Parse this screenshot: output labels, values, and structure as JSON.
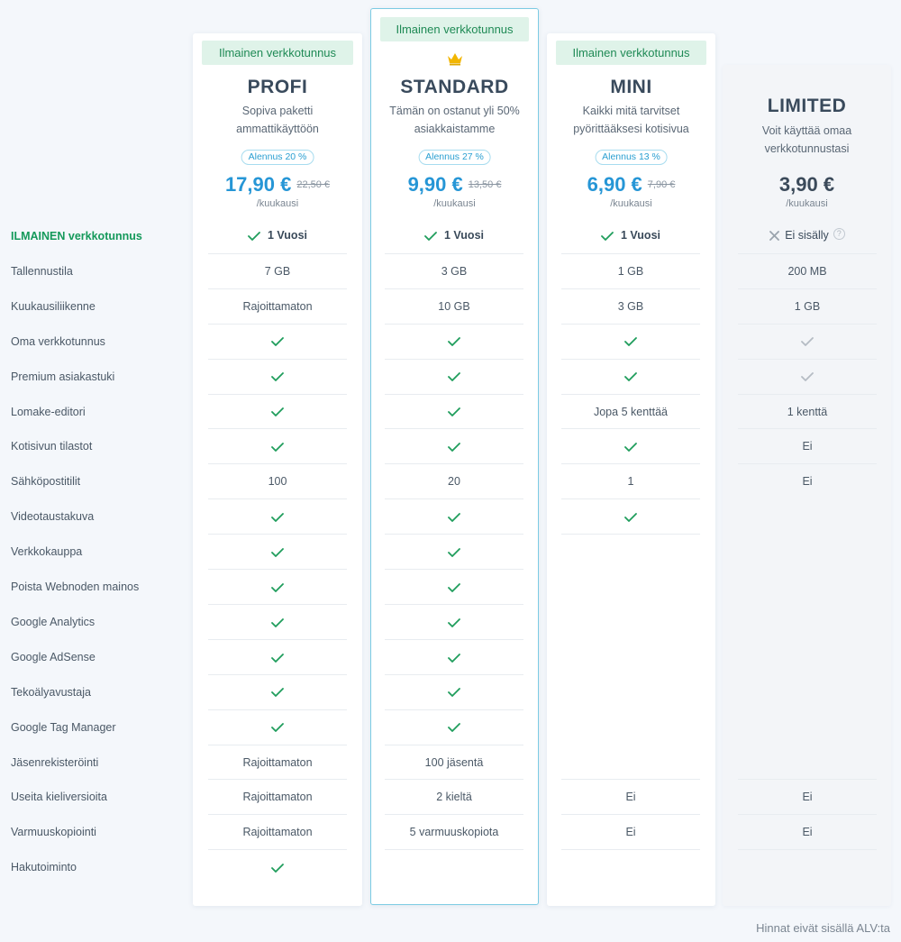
{
  "plans": [
    {
      "badge": "Ilmainen verkkotunnus",
      "name": "PROFI",
      "desc_lines": [
        "Sopiva paketti",
        "ammattikäyttöön"
      ],
      "discount": "Alennus 20 %",
      "price": "17,90 €",
      "old_price": "22,50 €",
      "period": "/kuukausi"
    },
    {
      "badge": "Ilmainen verkkotunnus",
      "name": "STANDARD",
      "desc_lines": [
        "Tämän on ostanut yli 50%",
        "asiakkaistamme"
      ],
      "discount": "Alennus 27 %",
      "price": "9,90 €",
      "old_price": "13,50 €",
      "period": "/kuukausi",
      "crown_icon": "crown-icon"
    },
    {
      "badge": "Ilmainen verkkotunnus",
      "name": "MINI",
      "desc_lines": [
        "Kaikki mitä tarvitset",
        "pyörittääksesi kotisivua"
      ],
      "discount": "Alennus 13 %",
      "price": "6,90 €",
      "old_price": "7,90 €",
      "period": "/kuukausi"
    },
    {
      "name": "LIMITED",
      "desc_lines": [
        "Voit käyttää omaa",
        "verkkotunnustasi"
      ],
      "price": "3,90 €",
      "period": "/kuukausi"
    }
  ],
  "features": [
    {
      "label": "ILMAINEN verkkotunnus",
      "highlight": true,
      "cells": [
        {
          "check": true,
          "text": "1 Vuosi"
        },
        {
          "check": true,
          "text": "1 Vuosi"
        },
        {
          "check": true,
          "text": "1 Vuosi"
        },
        {
          "cross": true,
          "text": "Ei sisälly",
          "help": "?"
        }
      ]
    },
    {
      "label": "Tallennustila",
      "cells": [
        {
          "text": "7 GB"
        },
        {
          "text": "3 GB"
        },
        {
          "text": "1 GB"
        },
        {
          "text": "200 MB"
        }
      ]
    },
    {
      "label": "Kuukausiliikenne",
      "cells": [
        {
          "text": "Rajoittamaton"
        },
        {
          "text": "10 GB"
        },
        {
          "text": "3 GB"
        },
        {
          "text": "1 GB"
        }
      ]
    },
    {
      "label": "Oma verkkotunnus",
      "cells": [
        {
          "check": true
        },
        {
          "check": true
        },
        {
          "check": true
        },
        {
          "check": true,
          "muted": true
        }
      ]
    },
    {
      "label": "Premium asiakastuki",
      "cells": [
        {
          "check": true
        },
        {
          "check": true
        },
        {
          "check": true
        },
        {
          "check": true,
          "muted": true
        }
      ]
    },
    {
      "label": "Lomake-editori",
      "cells": [
        {
          "check": true
        },
        {
          "check": true
        },
        {
          "text": "Jopa 5 kenttää"
        },
        {
          "text": "1 kenttä"
        }
      ]
    },
    {
      "label": "Kotisivun tilastot",
      "cells": [
        {
          "check": true
        },
        {
          "check": true
        },
        {
          "check": true
        },
        {
          "text": "Ei"
        }
      ]
    },
    {
      "label": "Sähköpostitilit",
      "cells": [
        {
          "text": "100"
        },
        {
          "text": "20"
        },
        {
          "text": "1"
        },
        {
          "text": "Ei"
        }
      ]
    },
    {
      "label": "Videotaustakuva",
      "cells": [
        {
          "check": true
        },
        {
          "check": true
        },
        {
          "check": true
        },
        {}
      ]
    },
    {
      "label": "Verkkokauppa",
      "cells": [
        {
          "check": true
        },
        {
          "check": true
        },
        {},
        {}
      ]
    },
    {
      "label": "Poista Webnoden mainos",
      "cells": [
        {
          "check": true
        },
        {
          "check": true
        },
        {},
        {}
      ]
    },
    {
      "label": "Google Analytics",
      "cells": [
        {
          "check": true
        },
        {
          "check": true
        },
        {},
        {}
      ]
    },
    {
      "label": "Google AdSense",
      "cells": [
        {
          "check": true
        },
        {
          "check": true
        },
        {},
        {}
      ]
    },
    {
      "label": "Tekoälyavustaja",
      "cells": [
        {
          "check": true
        },
        {
          "check": true
        },
        {},
        {}
      ]
    },
    {
      "label": "Google Tag Manager",
      "cells": [
        {
          "check": true
        },
        {
          "check": true
        },
        {},
        {}
      ]
    },
    {
      "label": "Jäsenrekisteröinti",
      "cells": [
        {
          "text": "Rajoittamaton"
        },
        {
          "text": "100 jäsentä"
        },
        {},
        {}
      ]
    },
    {
      "label": "Useita kieliversioita",
      "cells": [
        {
          "text": "Rajoittamaton"
        },
        {
          "text": "2 kieltä"
        },
        {
          "text": "Ei"
        },
        {
          "text": "Ei"
        }
      ]
    },
    {
      "label": "Varmuuskopiointi",
      "cells": [
        {
          "text": "Rajoittamaton"
        },
        {
          "text": "5 varmuuskopiota"
        },
        {
          "text": "Ei"
        },
        {
          "text": "Ei"
        }
      ]
    },
    {
      "label": "Hakutoiminto",
      "cells": [
        {
          "check": true
        },
        {},
        {},
        {}
      ]
    }
  ],
  "footer_note": "Hinnat eivät sisällä ALV:ta",
  "colors": {
    "accent": "#2696d6",
    "green": "#1f9d5c",
    "badge_bg": "#dff3e9",
    "highlight_border": "#7ccbe3"
  }
}
